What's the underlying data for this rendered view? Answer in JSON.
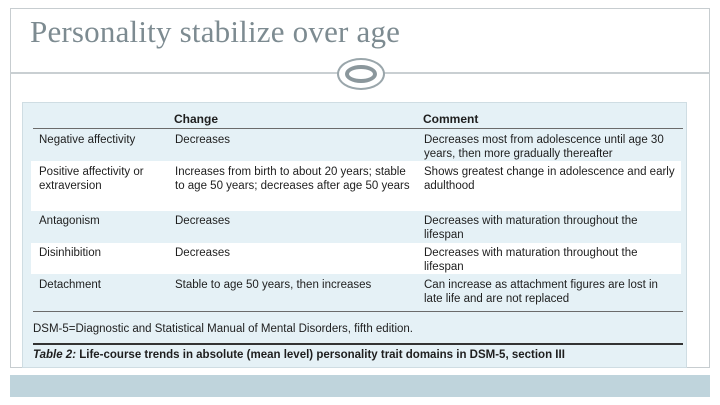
{
  "slide": {
    "title": "Personality stabilize over age"
  },
  "table": {
    "headers": {
      "change": "Change",
      "comment": "Comment"
    },
    "rows": [
      {
        "domain": "Negative affectivity",
        "change": "Decreases",
        "comment": "Decreases most from adolescence until age 30 years, then more gradually thereafter"
      },
      {
        "domain": "Positive affectivity or extraversion",
        "change": "Increases from birth to about 20 years; stable to age 50 years; decreases after age 50 years",
        "comment": "Shows greatest change in adolescence and early adulthood"
      },
      {
        "domain": "Antagonism",
        "change": "Decreases",
        "comment": "Decreases with maturation throughout the lifespan"
      },
      {
        "domain": "Disinhibition",
        "change": "Decreases",
        "comment": "Decreases with maturation throughout the lifespan"
      },
      {
        "domain": "Detachment",
        "change": "Stable to age 50 years, then increases",
        "comment": "Can increase as attachment figures are lost in late life and are not replaced"
      }
    ],
    "footnote": "DSM-5=Diagnostic and Statistical Manual of Mental Disorders, fifth edition.",
    "caption_label": "Table 2:",
    "caption_text": " Life-course trends in absolute (mean level) personality trait domains in DSM-5, section III"
  }
}
